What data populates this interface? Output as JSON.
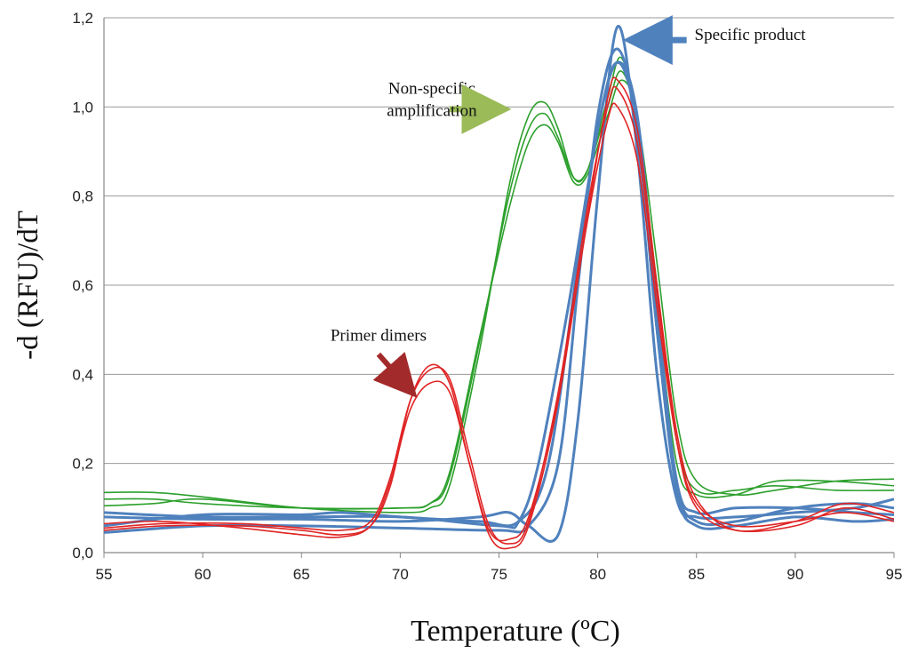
{
  "chart_data": {
    "type": "line",
    "title": "",
    "xlabel": "Temperature (ºC)",
    "ylabel": "-d (RFU)/dT",
    "xlim": [
      55,
      95
    ],
    "ylim": [
      0,
      1.2
    ],
    "x_ticks": [
      "55",
      "60",
      "65",
      "70",
      "75",
      "80",
      "85",
      "90",
      "95"
    ],
    "y_ticks": [
      "0,0",
      "0,2",
      "0,4",
      "0,6",
      "0,8",
      "1,0",
      "1,2"
    ],
    "grid": "horizontal",
    "legend": "none",
    "annotations": [
      {
        "text": "Specific product",
        "x": 84.9,
        "y": 1.15,
        "arrow_color": "#4f81bd",
        "arrow_from": [
          84.5,
          1.15
        ],
        "arrow_to": [
          81.9,
          1.15
        ]
      },
      {
        "text": "Non-specific",
        "x": 71.6,
        "y": 1.03,
        "arrow_color": "#9bbb59"
      },
      {
        "text": "amplification",
        "x": 71.6,
        "y": 0.98,
        "arrow_color": "#9bbb59",
        "arrow_from": [
          72.5,
          0.995
        ],
        "arrow_to": [
          75.0,
          0.995
        ]
      },
      {
        "text": "Primer dimers",
        "x": 68.9,
        "y": 0.475,
        "arrow_color": "#a32a2a",
        "arrow_from": [
          68.9,
          0.445
        ],
        "arrow_to": [
          70.5,
          0.365
        ]
      }
    ],
    "series": [
      {
        "color": "#4f81bd",
        "width": 3,
        "points": [
          [
            55,
            0.08
          ],
          [
            60,
            0.075
          ],
          [
            65,
            0.075
          ],
          [
            70,
            0.07
          ],
          [
            74,
            0.08
          ],
          [
            75.5,
            0.09
          ],
          [
            76.5,
            0.06
          ],
          [
            78,
            0.04
          ],
          [
            79,
            0.3
          ],
          [
            80,
            0.8
          ],
          [
            81,
            1.18
          ],
          [
            82,
            0.9
          ],
          [
            83,
            0.4
          ],
          [
            84,
            0.12
          ],
          [
            85,
            0.08
          ],
          [
            87,
            0.08
          ],
          [
            90,
            0.09
          ],
          [
            93,
            0.1
          ],
          [
            95,
            0.12
          ]
        ]
      },
      {
        "color": "#4f81bd",
        "width": 3,
        "points": [
          [
            55,
            0.045
          ],
          [
            60,
            0.06
          ],
          [
            65,
            0.06
          ],
          [
            70,
            0.055
          ],
          [
            75,
            0.05
          ],
          [
            76.5,
            0.06
          ],
          [
            78,
            0.2
          ],
          [
            79,
            0.6
          ],
          [
            80,
            0.98
          ],
          [
            81,
            1.13
          ],
          [
            82,
            0.95
          ],
          [
            83,
            0.5
          ],
          [
            84,
            0.15
          ],
          [
            85,
            0.07
          ],
          [
            87,
            0.07
          ],
          [
            90,
            0.1
          ],
          [
            93,
            0.11
          ],
          [
            95,
            0.1
          ]
        ]
      },
      {
        "color": "#4f81bd",
        "width": 3,
        "points": [
          [
            55,
            0.06
          ],
          [
            60,
            0.085
          ],
          [
            65,
            0.085
          ],
          [
            67,
            0.09
          ],
          [
            70,
            0.08
          ],
          [
            74,
            0.07
          ],
          [
            76,
            0.07
          ],
          [
            77.5,
            0.2
          ],
          [
            79,
            0.65
          ],
          [
            80,
            0.95
          ],
          [
            81,
            1.1
          ],
          [
            82,
            0.98
          ],
          [
            83,
            0.55
          ],
          [
            84,
            0.16
          ],
          [
            85,
            0.09
          ],
          [
            87,
            0.1
          ],
          [
            90,
            0.1
          ],
          [
            93,
            0.09
          ],
          [
            95,
            0.085
          ]
        ]
      },
      {
        "color": "#4f81bd",
        "width": 3,
        "points": [
          [
            55,
            0.09
          ],
          [
            60,
            0.08
          ],
          [
            65,
            0.08
          ],
          [
            70,
            0.08
          ],
          [
            75,
            0.06
          ],
          [
            76,
            0.07
          ],
          [
            77,
            0.2
          ],
          [
            78.5,
            0.55
          ],
          [
            80,
            0.95
          ],
          [
            81,
            1.1
          ],
          [
            82,
            0.95
          ],
          [
            83,
            0.5
          ],
          [
            84,
            0.14
          ],
          [
            85,
            0.06
          ],
          [
            87,
            0.06
          ],
          [
            90,
            0.08
          ],
          [
            93,
            0.07
          ],
          [
            95,
            0.075
          ]
        ]
      },
      {
        "color": "#2ca02c",
        "width": 1.6,
        "points": [
          [
            55,
            0.135
          ],
          [
            57.5,
            0.135
          ],
          [
            60,
            0.125
          ],
          [
            65,
            0.1
          ],
          [
            70,
            0.09
          ],
          [
            71.5,
            0.1
          ],
          [
            72.5,
            0.15
          ],
          [
            74,
            0.45
          ],
          [
            75.5,
            0.82
          ],
          [
            76.5,
            0.98
          ],
          [
            77.3,
            1.01
          ],
          [
            78,
            0.95
          ],
          [
            78.8,
            0.84
          ],
          [
            79.5,
            0.86
          ],
          [
            80.5,
            1.02
          ],
          [
            81.2,
            1.11
          ],
          [
            82,
            0.95
          ],
          [
            83,
            0.55
          ],
          [
            84,
            0.2
          ],
          [
            85,
            0.13
          ],
          [
            87,
            0.13
          ],
          [
            89,
            0.16
          ],
          [
            92,
            0.16
          ],
          [
            95,
            0.15
          ]
        ]
      },
      {
        "color": "#2ca02c",
        "width": 1.6,
        "points": [
          [
            55,
            0.12
          ],
          [
            57.5,
            0.12
          ],
          [
            60,
            0.11
          ],
          [
            65,
            0.1
          ],
          [
            70,
            0.1
          ],
          [
            71.5,
            0.11
          ],
          [
            72.5,
            0.17
          ],
          [
            74,
            0.47
          ],
          [
            75.5,
            0.8
          ],
          [
            76.5,
            0.95
          ],
          [
            77.3,
            0.985
          ],
          [
            78,
            0.93
          ],
          [
            78.8,
            0.84
          ],
          [
            79.5,
            0.86
          ],
          [
            80.5,
            1.0
          ],
          [
            81.2,
            1.08
          ],
          [
            82,
            0.96
          ],
          [
            83,
            0.6
          ],
          [
            84,
            0.25
          ],
          [
            85,
            0.14
          ],
          [
            87,
            0.14
          ],
          [
            89,
            0.15
          ],
          [
            92,
            0.14
          ],
          [
            95,
            0.14
          ]
        ]
      },
      {
        "color": "#2ca02c",
        "width": 1.6,
        "points": [
          [
            55,
            0.105
          ],
          [
            57.5,
            0.11
          ],
          [
            60,
            0.12
          ],
          [
            65,
            0.1
          ],
          [
            70,
            0.1
          ],
          [
            71.5,
            0.11
          ],
          [
            72.5,
            0.18
          ],
          [
            74,
            0.48
          ],
          [
            75.5,
            0.77
          ],
          [
            76.5,
            0.92
          ],
          [
            77.3,
            0.96
          ],
          [
            78,
            0.92
          ],
          [
            78.8,
            0.83
          ],
          [
            79.5,
            0.85
          ],
          [
            80.5,
            0.98
          ],
          [
            81.2,
            1.06
          ],
          [
            82,
            0.98
          ],
          [
            83,
            0.65
          ],
          [
            84,
            0.3
          ],
          [
            85,
            0.16
          ],
          [
            87,
            0.13
          ],
          [
            89,
            0.14
          ],
          [
            92,
            0.16
          ],
          [
            95,
            0.165
          ]
        ]
      },
      {
        "color": "#e02424",
        "width": 1.6,
        "points": [
          [
            55,
            0.05
          ],
          [
            58,
            0.06
          ],
          [
            62,
            0.06
          ],
          [
            65,
            0.05
          ],
          [
            67,
            0.04
          ],
          [
            68.5,
            0.06
          ],
          [
            69.5,
            0.15
          ],
          [
            70.5,
            0.34
          ],
          [
            71.5,
            0.42
          ],
          [
            72.5,
            0.38
          ],
          [
            73.5,
            0.2
          ],
          [
            74.5,
            0.05
          ],
          [
            75.5,
            0.03
          ],
          [
            76.5,
            0.08
          ],
          [
            78,
            0.35
          ],
          [
            79.5,
            0.75
          ],
          [
            80.5,
            0.97
          ],
          [
            81,
            1.0
          ],
          [
            82,
            0.88
          ],
          [
            83,
            0.55
          ],
          [
            84,
            0.25
          ],
          [
            85,
            0.11
          ],
          [
            87,
            0.06
          ],
          [
            90,
            0.07
          ],
          [
            92.5,
            0.09
          ],
          [
            95,
            0.07
          ]
        ]
      },
      {
        "color": "#e02424",
        "width": 1.6,
        "points": [
          [
            55,
            0.055
          ],
          [
            58,
            0.065
          ],
          [
            62,
            0.065
          ],
          [
            65,
            0.055
          ],
          [
            67,
            0.05
          ],
          [
            68.5,
            0.07
          ],
          [
            69.5,
            0.17
          ],
          [
            70.5,
            0.34
          ],
          [
            71.5,
            0.41
          ],
          [
            72.5,
            0.39
          ],
          [
            73.5,
            0.22
          ],
          [
            74.5,
            0.06
          ],
          [
            75.5,
            0.02
          ],
          [
            76.5,
            0.07
          ],
          [
            78,
            0.36
          ],
          [
            79.5,
            0.78
          ],
          [
            80.5,
            1.0
          ],
          [
            81,
            1.04
          ],
          [
            82,
            0.92
          ],
          [
            83,
            0.58
          ],
          [
            84,
            0.25
          ],
          [
            85,
            0.1
          ],
          [
            87,
            0.05
          ],
          [
            90,
            0.06
          ],
          [
            92.5,
            0.1
          ],
          [
            95,
            0.075
          ]
        ]
      },
      {
        "color": "#e02424",
        "width": 1.6,
        "points": [
          [
            55,
            0.065
          ],
          [
            58,
            0.07
          ],
          [
            62,
            0.055
          ],
          [
            65,
            0.04
          ],
          [
            67,
            0.035
          ],
          [
            68.5,
            0.06
          ],
          [
            69.5,
            0.16
          ],
          [
            70.5,
            0.32
          ],
          [
            71.5,
            0.38
          ],
          [
            72.5,
            0.36
          ],
          [
            73.5,
            0.2
          ],
          [
            74.5,
            0.04
          ],
          [
            75.5,
            0.01
          ],
          [
            76.5,
            0.06
          ],
          [
            78,
            0.34
          ],
          [
            79.5,
            0.76
          ],
          [
            80.5,
            1.02
          ],
          [
            81,
            1.06
          ],
          [
            82,
            0.95
          ],
          [
            83,
            0.6
          ],
          [
            84,
            0.27
          ],
          [
            85,
            0.12
          ],
          [
            87,
            0.05
          ],
          [
            90,
            0.07
          ],
          [
            92.5,
            0.11
          ],
          [
            95,
            0.09
          ]
        ]
      },
      {
        "color": "#e02424",
        "width": 1.6,
        "points": [
          [
            55,
            0.05
          ],
          [
            58,
            0.055
          ],
          [
            62,
            0.06
          ],
          [
            65,
            0.06
          ],
          [
            67,
            0.05
          ],
          [
            68.5,
            0.07
          ],
          [
            69.5,
            0.18
          ],
          [
            70.5,
            0.36
          ],
          [
            71.5,
            0.42
          ],
          [
            72.5,
            0.4
          ],
          [
            73.5,
            0.23
          ],
          [
            74.5,
            0.07
          ],
          [
            75.5,
            0.03
          ],
          [
            76.5,
            0.09
          ],
          [
            78,
            0.37
          ],
          [
            79.5,
            0.8
          ],
          [
            80.5,
            1.03
          ],
          [
            81,
            1.07
          ],
          [
            82,
            0.96
          ],
          [
            83,
            0.62
          ],
          [
            84,
            0.28
          ],
          [
            85,
            0.12
          ],
          [
            87,
            0.04
          ],
          [
            90,
            0.05
          ],
          [
            92.5,
            0.08
          ],
          [
            95,
            0.065
          ]
        ]
      }
    ]
  }
}
